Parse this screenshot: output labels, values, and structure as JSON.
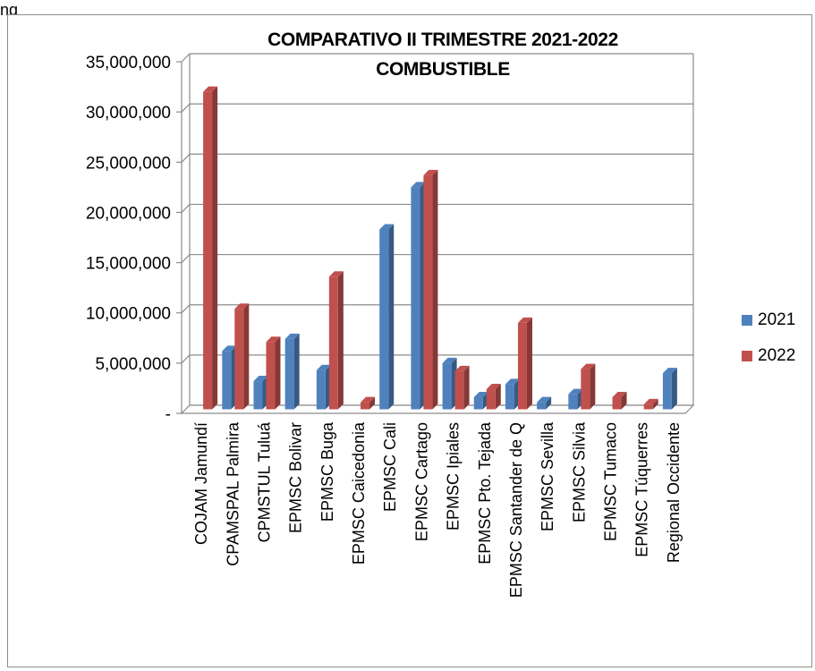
{
  "caption": "ng",
  "chart_data": {
    "type": "bar",
    "title": [
      "COMPARATIVO II TRIMESTRE 2021-2022",
      "COMBUSTIBLE"
    ],
    "xlabel": "",
    "ylabel": "",
    "ylim": [
      0,
      35000000
    ],
    "y_ticks": [
      "-",
      "5,000,000",
      "10,000,000",
      "15,000,000",
      "20,000,000",
      "25,000,000",
      "30,000,000",
      "35,000,000"
    ],
    "y_tick_values": [
      0,
      5000000,
      10000000,
      15000000,
      20000000,
      25000000,
      30000000,
      35000000
    ],
    "categories": [
      "COJAM Jamundí",
      "CPAMSPAL Palmira",
      "CPMSTUL Tuluá",
      "EPMSC Bolivar",
      "EPMSC Buga",
      "EPMSC Caicedonia",
      "EPMSC Cali",
      "EPMSC Cartago",
      "EPMSC Ipiales",
      "EPMSC Pto. Tejada",
      "EPMSC Santander de Q",
      "EPMSC Sevilla",
      "EPMSC Silvia",
      "EPMSC Tumaco",
      "EPMSC Túquerres",
      "Regional Occidente"
    ],
    "series": [
      {
        "name": "2021",
        "color": "#4f81bd",
        "values": [
          0,
          5800000,
          2800000,
          7000000,
          3900000,
          0,
          17900000,
          22100000,
          4600000,
          1200000,
          2500000,
          700000,
          1500000,
          0,
          0,
          3600000
        ]
      },
      {
        "name": "2022",
        "color": "#c0504d",
        "values": [
          31600000,
          10000000,
          6700000,
          0,
          13200000,
          700000,
          0,
          23300000,
          3800000,
          2000000,
          8600000,
          0,
          4000000,
          1200000,
          500000,
          0
        ]
      }
    ],
    "grid": true,
    "legend_position": "right"
  }
}
